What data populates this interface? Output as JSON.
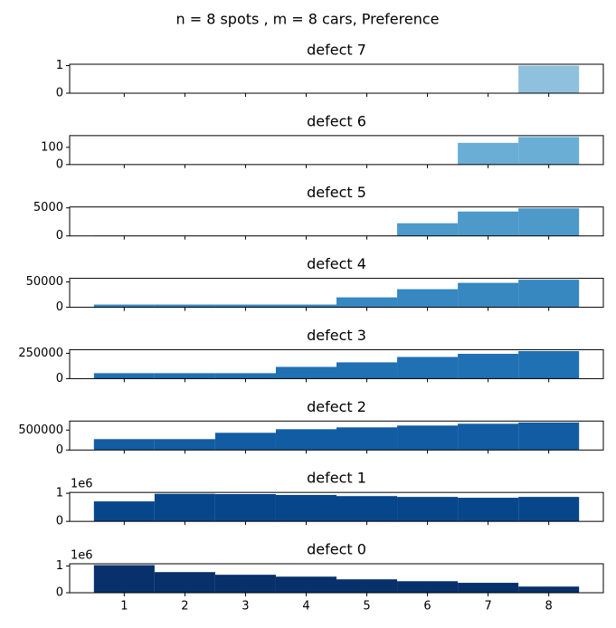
{
  "title": "n = 8 spots , m = 8 cars, Preference",
  "chart_data": [
    {
      "type": "bar",
      "title": "defect 7",
      "x": [
        1,
        2,
        3,
        4,
        5,
        6,
        7,
        8
      ],
      "values": [
        0,
        0,
        0,
        0,
        0,
        0,
        0,
        1
      ],
      "color": "#8fc1de",
      "xlim": [
        0.1,
        8.9
      ],
      "xticks": [
        1,
        2,
        3,
        4,
        5,
        6,
        7,
        8
      ],
      "ylim": [
        0,
        1.05
      ],
      "yticks": [
        0,
        1
      ]
    },
    {
      "type": "bar",
      "title": "defect 6",
      "x": [
        1,
        2,
        3,
        4,
        5,
        6,
        7,
        8
      ],
      "values": [
        0,
        0,
        0,
        0,
        0,
        0,
        126,
        160
      ],
      "color": "#6aaed6",
      "xlim": [
        0.1,
        8.9
      ],
      "xticks": [
        1,
        2,
        3,
        4,
        5,
        6,
        7,
        8
      ],
      "ylim": [
        0,
        168
      ],
      "yticks": [
        0,
        100
      ]
    },
    {
      "type": "bar",
      "title": "defect 5",
      "x": [
        1,
        2,
        3,
        4,
        5,
        6,
        7,
        8
      ],
      "values": [
        60,
        60,
        60,
        60,
        60,
        2260,
        4350,
        4914
      ],
      "color": "#4d99ca",
      "xlim": [
        0.1,
        8.9
      ],
      "xticks": [
        1,
        2,
        3,
        4,
        5,
        6,
        7,
        8
      ],
      "ylim": [
        0,
        5160
      ],
      "yticks": [
        0,
        5000
      ]
    },
    {
      "type": "bar",
      "title": "defect 4",
      "x": [
        1,
        2,
        3,
        4,
        5,
        6,
        7,
        8
      ],
      "values": [
        5400,
        5400,
        5400,
        5400,
        19600,
        35700,
        48200,
        54400
      ],
      "color": "#3787c0",
      "xlim": [
        0.1,
        8.9
      ],
      "xticks": [
        1,
        2,
        3,
        4,
        5,
        6,
        7,
        8
      ],
      "ylim": [
        0,
        57140
      ],
      "yticks": [
        0,
        50000
      ]
    },
    {
      "type": "bar",
      "title": "defect 3",
      "x": [
        1,
        2,
        3,
        4,
        5,
        6,
        7,
        8
      ],
      "values": [
        54000,
        54000,
        54000,
        116000,
        161000,
        214000,
        245000,
        272000
      ],
      "color": "#2070b4",
      "xlim": [
        0.1,
        8.9
      ],
      "xticks": [
        1,
        2,
        3,
        4,
        5,
        6,
        7,
        8
      ],
      "ylim": [
        0,
        285700
      ],
      "yticks": [
        0,
        250000
      ]
    },
    {
      "type": "bar",
      "title": "defect 2",
      "x": [
        1,
        2,
        3,
        4,
        5,
        6,
        7,
        8
      ],
      "values": [
        273000,
        273000,
        432000,
        522000,
        568000,
        614000,
        659000,
        692000
      ],
      "color": "#125ca4",
      "xlim": [
        0.1,
        8.9
      ],
      "xticks": [
        1,
        2,
        3,
        4,
        5,
        6,
        7,
        8
      ],
      "ylim": [
        0,
        727000
      ],
      "yticks": [
        0,
        500000
      ]
    },
    {
      "type": "bar",
      "title": "defect 1",
      "offset_text": "1e6",
      "x": [
        1,
        2,
        3,
        4,
        5,
        6,
        7,
        8
      ],
      "values": [
        0.71,
        0.98,
        0.97,
        0.94,
        0.9,
        0.87,
        0.84,
        0.87
      ],
      "color": "#08468b",
      "xlim": [
        0.1,
        8.9
      ],
      "xticks": [
        1,
        2,
        3,
        4,
        5,
        6,
        7,
        8
      ],
      "ylim": [
        0,
        1.03
      ],
      "yticks": [
        0,
        1
      ]
    },
    {
      "type": "bar",
      "title": "defect 0",
      "offset_text": "1e6",
      "x": [
        1,
        2,
        3,
        4,
        5,
        6,
        7,
        8
      ],
      "values": [
        1.03,
        0.77,
        0.67,
        0.6,
        0.5,
        0.43,
        0.37,
        0.23
      ],
      "color": "#08306b",
      "xlim": [
        0.1,
        8.9
      ],
      "xticks": [
        1,
        2,
        3,
        4,
        5,
        6,
        7,
        8
      ],
      "ylim": [
        0,
        1.08
      ],
      "yticks": [
        0,
        1
      ]
    }
  ]
}
